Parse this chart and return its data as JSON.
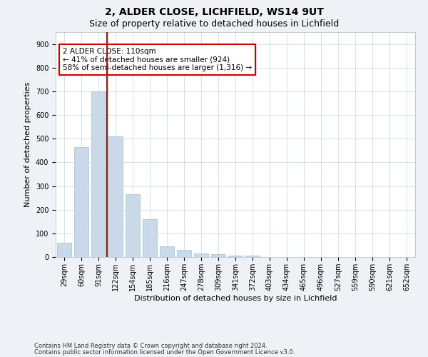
{
  "title1": "2, ALDER CLOSE, LICHFIELD, WS14 9UT",
  "title2": "Size of property relative to detached houses in Lichfield",
  "xlabel": "Distribution of detached houses by size in Lichfield",
  "ylabel": "Number of detached properties",
  "categories": [
    "29sqm",
    "60sqm",
    "91sqm",
    "122sqm",
    "154sqm",
    "185sqm",
    "216sqm",
    "247sqm",
    "278sqm",
    "309sqm",
    "341sqm",
    "372sqm",
    "403sqm",
    "434sqm",
    "465sqm",
    "496sqm",
    "527sqm",
    "559sqm",
    "590sqm",
    "621sqm",
    "652sqm"
  ],
  "values": [
    60,
    465,
    700,
    510,
    265,
    160,
    45,
    30,
    15,
    12,
    7,
    5,
    0,
    0,
    0,
    0,
    0,
    0,
    0,
    0,
    0
  ],
  "bar_color": "#c9d9e8",
  "bar_edgecolor": "#a8becc",
  "vline_color": "#cc0000",
  "annotation_text": "2 ALDER CLOSE: 110sqm\n← 41% of detached houses are smaller (924)\n58% of semi-detached houses are larger (1,316) →",
  "annotation_box_edgecolor": "#cc0000",
  "annotation_facecolor": "white",
  "ylim": [
    0,
    950
  ],
  "yticks": [
    0,
    100,
    200,
    300,
    400,
    500,
    600,
    700,
    800,
    900
  ],
  "footnote1": "Contains HM Land Registry data © Crown copyright and database right 2024.",
  "footnote2": "Contains public sector information licensed under the Open Government Licence v3.0.",
  "background_color": "#eef2f7",
  "plot_background": "#ffffff",
  "grid_color": "#c8d4e0",
  "title1_fontsize": 10,
  "title2_fontsize": 9,
  "xlabel_fontsize": 8,
  "ylabel_fontsize": 8,
  "tick_fontsize": 7,
  "annotation_fontsize": 7.5,
  "footnote_fontsize": 6
}
